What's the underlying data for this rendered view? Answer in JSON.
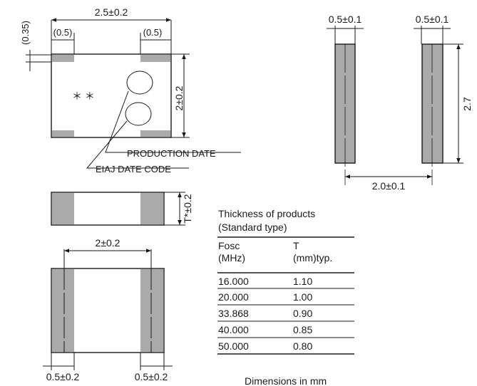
{
  "top_view": {
    "length_dim": "2.5±0.2",
    "pad_dim_left": "(0.5)",
    "pad_dim_right": "(0.5)",
    "pad_height_dim": "(0.35)",
    "width_dim": "2±0.2",
    "marking": "＊ ＊",
    "label_production_date": "PRODUCTION DATE",
    "label_eiaj_date_code": "EIAJ DATE CODE"
  },
  "side_view": {
    "thickness_dim": "T*±0.2"
  },
  "bottom_view": {
    "inner_dim": "2±0.2",
    "pad_left_dim": "0.5±0.2",
    "pad_right_dim": "0.5±0.2"
  },
  "land_pattern": {
    "pad_left_dim": "0.5±0.1",
    "pad_right_dim": "0.5±0.1",
    "height_dim": "2.7",
    "pitch_dim": "2.0±0.1"
  },
  "thickness_table": {
    "title_line1": "Thickness of products",
    "title_line2": "(Standard type)",
    "col1_header_line1": "Fosc",
    "col1_header_line2": "(MHz)",
    "col2_header_line1": "T",
    "col2_header_line2": "(mm)typ.",
    "rows": [
      {
        "fosc": "16.000",
        "t": "1.10"
      },
      {
        "fosc": "20.000",
        "t": "1.00"
      },
      {
        "fosc": "33.868",
        "t": "0.90"
      },
      {
        "fosc": "40.000",
        "t": "0.85"
      },
      {
        "fosc": "50.000",
        "t": "0.80"
      }
    ]
  },
  "units_note": "Dimensions in mm"
}
